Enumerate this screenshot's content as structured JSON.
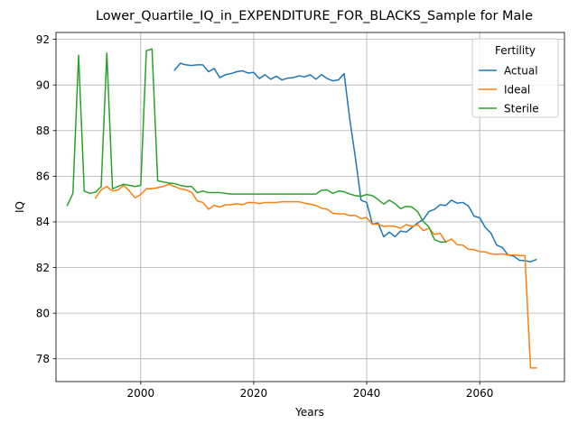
{
  "chart_data": {
    "type": "line",
    "title": "Lower_Quartile_IQ_in_EXPENDITURE_FOR_BLACKS_Sample for Male",
    "xlabel": "Years",
    "ylabel": "IQ",
    "xlim": [
      1985,
      2075
    ],
    "ylim": [
      77.0,
      92.3
    ],
    "xticks": [
      2000,
      2020,
      2040,
      2060
    ],
    "yticks": [
      78,
      80,
      82,
      84,
      86,
      88,
      90,
      92
    ],
    "grid": true,
    "legend": {
      "title": "Fertility",
      "placement": "top-right"
    },
    "series": [
      {
        "name": "Actual",
        "color": "#1f77b4",
        "x": [
          2006,
          2007,
          2008,
          2009,
          2010,
          2011,
          2012,
          2013,
          2014,
          2015,
          2016,
          2017,
          2018,
          2019,
          2020,
          2021,
          2022,
          2023,
          2024,
          2025,
          2026,
          2027,
          2028,
          2029,
          2030,
          2031,
          2032,
          2033,
          2034,
          2035,
          2036,
          2037,
          2038,
          2039,
          2040,
          2041,
          2042,
          2043,
          2044,
          2045,
          2046,
          2047,
          2048,
          2049,
          2050,
          2051,
          2052,
          2053,
          2054,
          2055,
          2056,
          2057,
          2058,
          2059,
          2060,
          2061,
          2062,
          2063,
          2064,
          2065,
          2066,
          2067,
          2068,
          2069,
          2070
        ],
        "y": [
          90.65,
          90.95,
          90.88,
          90.85,
          90.88,
          90.88,
          90.58,
          90.72,
          90.32,
          90.45,
          90.5,
          90.58,
          90.62,
          90.52,
          90.55,
          90.28,
          90.45,
          90.25,
          90.38,
          90.22,
          90.3,
          90.32,
          90.4,
          90.35,
          90.45,
          90.25,
          90.45,
          90.28,
          90.18,
          90.22,
          90.5,
          88.5,
          86.8,
          84.95,
          84.85,
          83.9,
          83.95,
          83.35,
          83.55,
          83.35,
          83.6,
          83.55,
          83.75,
          83.95,
          84.1,
          84.45,
          84.55,
          84.75,
          84.72,
          84.95,
          84.82,
          84.85,
          84.7,
          84.25,
          84.18,
          83.75,
          83.5,
          82.98,
          82.88,
          82.55,
          82.5,
          82.32,
          82.3,
          82.25,
          82.35
        ]
      },
      {
        "name": "Ideal",
        "color": "#ff7f0e",
        "x": [
          1992,
          1993,
          1994,
          1995,
          1996,
          1997,
          1998,
          1999,
          2000,
          2001,
          2002,
          2003,
          2004,
          2005,
          2006,
          2007,
          2008,
          2009,
          2010,
          2011,
          2012,
          2013,
          2014,
          2015,
          2016,
          2017,
          2018,
          2019,
          2020,
          2021,
          2022,
          2023,
          2024,
          2025,
          2026,
          2027,
          2028,
          2029,
          2030,
          2031,
          2032,
          2033,
          2034,
          2035,
          2036,
          2037,
          2038,
          2039,
          2040,
          2041,
          2042,
          2043,
          2044,
          2045,
          2046,
          2047,
          2048,
          2049,
          2050,
          2051,
          2052,
          2053,
          2054,
          2055,
          2056,
          2057,
          2058,
          2059,
          2060,
          2061,
          2062,
          2063,
          2064,
          2065,
          2066,
          2067,
          2068,
          2069,
          2070
        ],
        "y": [
          85.05,
          85.4,
          85.55,
          85.35,
          85.4,
          85.6,
          85.35,
          85.05,
          85.2,
          85.45,
          85.45,
          85.5,
          85.55,
          85.65,
          85.55,
          85.45,
          85.4,
          85.3,
          84.92,
          84.85,
          84.55,
          84.72,
          84.65,
          84.75,
          84.75,
          84.8,
          84.75,
          84.85,
          84.85,
          84.8,
          84.85,
          84.85,
          84.85,
          84.88,
          84.88,
          84.88,
          84.88,
          84.82,
          84.78,
          84.72,
          84.6,
          84.55,
          84.38,
          84.35,
          84.35,
          84.28,
          84.28,
          84.15,
          84.18,
          83.9,
          83.9,
          83.8,
          83.82,
          83.8,
          83.72,
          83.88,
          83.8,
          83.88,
          83.62,
          83.72,
          83.45,
          83.5,
          83.12,
          83.25,
          83.0,
          82.98,
          82.8,
          82.78,
          82.7,
          82.68,
          82.6,
          82.58,
          82.6,
          82.55,
          82.55,
          82.52,
          82.52,
          77.6,
          77.6
        ]
      },
      {
        "name": "Sterile",
        "color": "#2ca02c",
        "x": [
          1987,
          1988,
          1989,
          1990,
          1991,
          1992,
          1993,
          1994,
          1995,
          1996,
          1997,
          1998,
          1999,
          2000,
          2001,
          2002,
          2003,
          2004,
          2005,
          2006,
          2007,
          2008,
          2009,
          2010,
          2011,
          2012,
          2013,
          2014,
          2015,
          2016,
          2017,
          2018,
          2019,
          2020,
          2021,
          2022,
          2023,
          2024,
          2025,
          2026,
          2027,
          2028,
          2029,
          2030,
          2031,
          2032,
          2033,
          2034,
          2035,
          2036,
          2037,
          2038,
          2039,
          2040,
          2041,
          2042,
          2043,
          2044,
          2045,
          2046,
          2047,
          2048,
          2049,
          2050,
          2051,
          2052,
          2053,
          2054
        ],
        "y": [
          84.72,
          85.25,
          91.3,
          85.35,
          85.25,
          85.3,
          85.55,
          91.4,
          85.45,
          85.55,
          85.65,
          85.6,
          85.55,
          85.6,
          91.5,
          91.58,
          85.8,
          85.75,
          85.7,
          85.68,
          85.6,
          85.55,
          85.55,
          85.28,
          85.35,
          85.28,
          85.28,
          85.28,
          85.25,
          85.22,
          85.22,
          85.22,
          85.22,
          85.22,
          85.22,
          85.22,
          85.22,
          85.22,
          85.22,
          85.22,
          85.22,
          85.22,
          85.22,
          85.22,
          85.22,
          85.38,
          85.4,
          85.25,
          85.35,
          85.32,
          85.22,
          85.15,
          85.12,
          85.2,
          85.15,
          84.98,
          84.78,
          84.95,
          84.8,
          84.58,
          84.68,
          84.65,
          84.45,
          84.02,
          83.78,
          83.22,
          83.12,
          83.12
        ]
      }
    ]
  }
}
